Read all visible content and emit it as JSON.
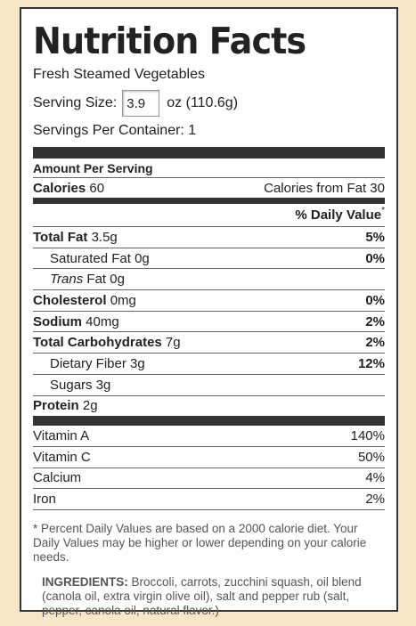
{
  "header": {
    "title": "Nutrition Facts",
    "product": "Fresh Steamed Vegetables"
  },
  "serving": {
    "size_label": "Serving Size:",
    "size_value": "3.9",
    "size_unit": "oz (110.6g)",
    "per_container": "Servings Per Container: 1"
  },
  "amount_per_serving": "Amount Per Serving",
  "calories": {
    "label": "Calories",
    "value": "60",
    "from_fat": "Calories from Fat 30"
  },
  "daily_value_header": {
    "label": "% Daily Value",
    "mark": "*"
  },
  "nutrients": [
    {
      "name": "Total Fat",
      "amount": "3.5g",
      "dv": "5%",
      "level": 0
    },
    {
      "name": "Saturated Fat",
      "amount": "0g",
      "dv": "0%",
      "level": 1
    },
    {
      "italic": "Trans",
      "name": "Fat",
      "amount": "0g",
      "level": 1
    },
    {
      "name": "Cholesterol",
      "amount": "0mg",
      "dv": "0%",
      "level": 0
    },
    {
      "name": "Sodium",
      "amount": "40mg",
      "dv": "2%",
      "level": 0
    },
    {
      "name": "Total Carbohydrates",
      "amount": "7g",
      "dv": "2%",
      "level": 0
    },
    {
      "name": "Dietary Fiber",
      "amount": "3g",
      "dv": "12%",
      "level": 1
    },
    {
      "name": "Sugars",
      "amount": "3g",
      "level": 1
    },
    {
      "name": "Protein",
      "amount": "2g",
      "level": 0
    }
  ],
  "vitamins": [
    {
      "name": "Vitamin A",
      "dv": "140%"
    },
    {
      "name": "Vitamin C",
      "dv": "50%"
    },
    {
      "name": "Calcium",
      "dv": "4%"
    },
    {
      "name": "Iron",
      "dv": "2%"
    }
  ],
  "footnote": "* Percent Daily Values are based on a 2000 calorie diet. Your Daily Values may be higher or lower depending on your calorie needs.",
  "ingredients": {
    "label": "INGREDIENTS:",
    "text": "Broccoli, carrots, zucchini squash, oil blend (canola oil, extra virgin olive oil), salt and pepper rub (salt, pepper, canola oil, natural flavor.)"
  }
}
